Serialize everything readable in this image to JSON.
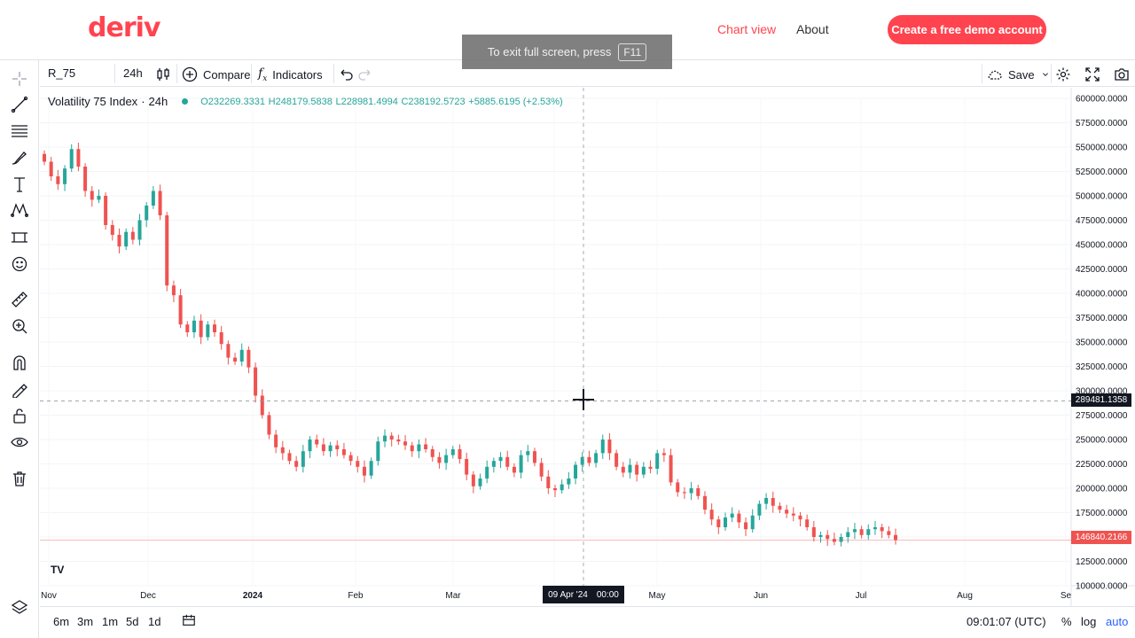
{
  "header": {
    "logo_text": "deriv",
    "nav": {
      "chart_view": "Chart view",
      "about": "About"
    },
    "cta_label": "Create a free demo account",
    "brand_color": "#ff444f"
  },
  "fullscreen_notice": {
    "text": "To exit full screen, press",
    "key": "F11"
  },
  "toolbar": {
    "symbol": "R_75",
    "interval": "24h",
    "compare_label": "Compare",
    "indicators_label": "Indicators",
    "save_label": "Save"
  },
  "left_tools": [
    "crosshair-icon",
    "trend-line-icon",
    "fib-icon",
    "brush-icon",
    "text-icon",
    "pattern-icon",
    "forecast-icon",
    "emoji-icon",
    "ruler-icon",
    "zoom-icon",
    "magnet-icon",
    "lock-drawing-icon",
    "lock-icon",
    "eye-icon",
    "trash-icon",
    "layers-icon"
  ],
  "legend": {
    "symbol_name": "Volatility 75 Index",
    "interval": "24h",
    "open": "O232269.3331",
    "high": "H248179.5838",
    "low": "L228981.4994",
    "close": "C238192.5723",
    "change": "+5885.6195 (+2.53%)"
  },
  "chart_data": {
    "type": "candlestick",
    "series_name": "Volatility 75 Index",
    "y_ticks": [
      "600000.0000",
      "575000.0000",
      "550000.0000",
      "525000.0000",
      "500000.0000",
      "475000.0000",
      "450000.0000",
      "425000.0000",
      "400000.0000",
      "375000.0000",
      "350000.0000",
      "325000.0000",
      "300000.0000",
      "275000.0000",
      "250000.0000",
      "225000.0000",
      "200000.0000",
      "175000.0000",
      "150000.0000",
      "125000.0000",
      "100000.0000"
    ],
    "ylim": [
      100000,
      600000
    ],
    "x_ticks": [
      "Nov",
      "Dec",
      "2024",
      "Feb",
      "Mar",
      "Apr",
      "May",
      "Jun",
      "Jul",
      "Aug",
      "Se"
    ],
    "closes": [
      535000,
      520000,
      512000,
      528000,
      548000,
      530000,
      505000,
      496000,
      500000,
      470000,
      460000,
      448000,
      463000,
      455000,
      475000,
      490000,
      505000,
      480000,
      408000,
      398000,
      368000,
      360000,
      372000,
      355000,
      368000,
      360000,
      348000,
      334000,
      330000,
      342000,
      324000,
      295000,
      275000,
      255000,
      242000,
      236000,
      228000,
      222000,
      238000,
      250000,
      245000,
      238000,
      244000,
      240000,
      234000,
      228000,
      222000,
      213000,
      228000,
      248000,
      254000,
      250000,
      248000,
      244000,
      238000,
      245000,
      240000,
      232000,
      226000,
      234000,
      240000,
      230000,
      214000,
      202000,
      210000,
      222000,
      228000,
      232000,
      222000,
      216000,
      234000,
      238000,
      226000,
      212000,
      200000,
      198000,
      204000,
      210000,
      224000,
      232000,
      226000,
      236000,
      250000,
      236000,
      222000,
      216000,
      224000,
      214000,
      222000,
      220000,
      236000,
      234000,
      206000,
      196000,
      195000,
      200000,
      192000,
      178000,
      168000,
      160000,
      170000,
      174000,
      165000,
      158000,
      172000,
      184000,
      190000,
      182000,
      178000,
      174000,
      172000,
      168000,
      160000,
      150000,
      152000,
      148000,
      145000,
      150000,
      155000,
      158000,
      152000,
      158000,
      160000,
      156000,
      152000,
      146840
    ],
    "last_price": "146840.2166",
    "crosshair_price": "289481.1358",
    "crosshair_time": {
      "date": "09 Apr '24",
      "time": "00:00"
    },
    "up_color": "#26a69a",
    "down_color": "#ef5350"
  },
  "bottom": {
    "ranges": [
      "6m",
      "3m",
      "1m",
      "5d",
      "1d"
    ],
    "clock": "09:01:07 (UTC)",
    "percent": "%",
    "log": "log",
    "auto": "auto"
  }
}
